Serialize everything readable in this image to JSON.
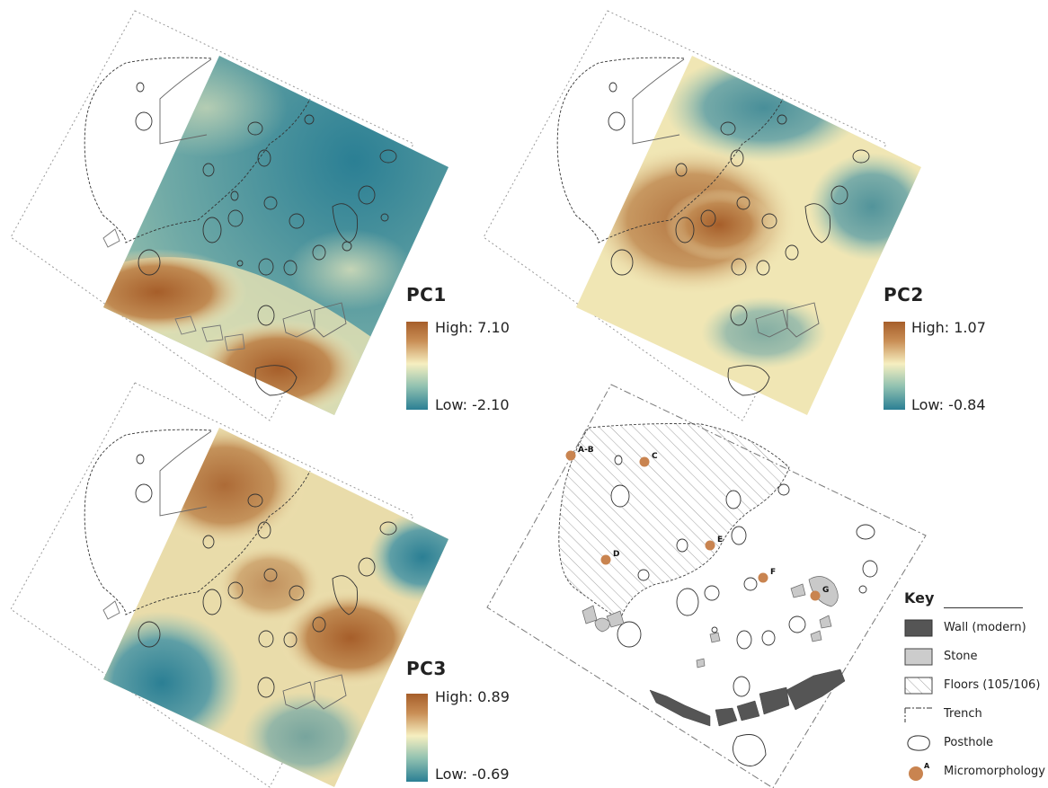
{
  "panels": [
    {
      "id": "pc1",
      "title": "PC1",
      "high": "High: 7.10",
      "low": "Low: -2.10"
    },
    {
      "id": "pc2",
      "title": "PC2",
      "high": "High: 1.07",
      "low": "Low: -0.84"
    },
    {
      "id": "pc3",
      "title": "PC3",
      "high": "High: 0.89",
      "low": "Low: -0.69"
    }
  ],
  "samples": [
    "A-B",
    "C",
    "D",
    "E",
    "F",
    "G"
  ],
  "key": {
    "title": "Key",
    "items": [
      {
        "label": "Wall (modern)",
        "icon": "wall-swatch",
        "color": "#555555"
      },
      {
        "label": "Stone",
        "icon": "stone-swatch",
        "color": "#cccccc"
      },
      {
        "label": "Floors (105/106)",
        "icon": "hatch-swatch"
      },
      {
        "label": "Trench",
        "icon": "trench-line"
      },
      {
        "label": "Posthole",
        "icon": "posthole-outline"
      },
      {
        "label": "Micromorphology",
        "icon": "sample-dot",
        "color": "#c98450",
        "marker": "A"
      }
    ]
  },
  "colors": {
    "high": "#a65e2a",
    "mid": "#f6efc0",
    "low": "#2b7f94"
  }
}
